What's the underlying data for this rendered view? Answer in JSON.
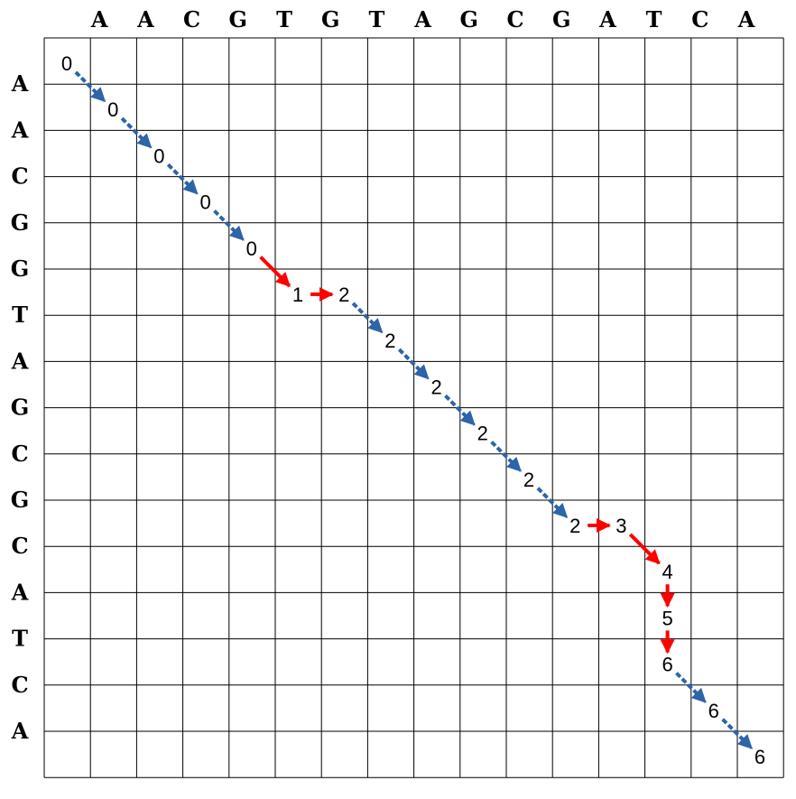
{
  "top_sequence": [
    "A",
    "A",
    "C",
    "G",
    "T",
    "G",
    "T",
    "A",
    "G",
    "C",
    "G",
    "A",
    "T",
    "C",
    "A"
  ],
  "left_sequence": [
    "A",
    "A",
    "C",
    "G",
    "G",
    "T",
    "A",
    "G",
    "C",
    "G",
    "C",
    "A",
    "T",
    "C",
    "A"
  ],
  "path": [
    {
      "row": 0,
      "col": 0,
      "score": "0"
    },
    {
      "row": 1,
      "col": 1,
      "score": "0"
    },
    {
      "row": 2,
      "col": 2,
      "score": "0"
    },
    {
      "row": 3,
      "col": 3,
      "score": "0"
    },
    {
      "row": 4,
      "col": 4,
      "score": "0"
    },
    {
      "row": 5,
      "col": 5,
      "score": "1"
    },
    {
      "row": 5,
      "col": 6,
      "score": "2"
    },
    {
      "row": 6,
      "col": 7,
      "score": "2"
    },
    {
      "row": 7,
      "col": 8,
      "score": "2"
    },
    {
      "row": 8,
      "col": 9,
      "score": "2"
    },
    {
      "row": 9,
      "col": 10,
      "score": "2"
    },
    {
      "row": 10,
      "col": 11,
      "score": "2"
    },
    {
      "row": 10,
      "col": 12,
      "score": "3"
    },
    {
      "row": 11,
      "col": 13,
      "score": "4"
    },
    {
      "row": 12,
      "col": 13,
      "score": "5"
    },
    {
      "row": 13,
      "col": 13,
      "score": "6"
    },
    {
      "row": 14,
      "col": 14,
      "score": "6"
    },
    {
      "row": 15,
      "col": 15,
      "score": "6"
    }
  ],
  "arrows": [
    {
      "from": 0,
      "to": 1,
      "kind": "match"
    },
    {
      "from": 1,
      "to": 2,
      "kind": "match"
    },
    {
      "from": 2,
      "to": 3,
      "kind": "match"
    },
    {
      "from": 3,
      "to": 4,
      "kind": "match"
    },
    {
      "from": 4,
      "to": 5,
      "kind": "edit"
    },
    {
      "from": 5,
      "to": 6,
      "kind": "edit"
    },
    {
      "from": 6,
      "to": 7,
      "kind": "match"
    },
    {
      "from": 7,
      "to": 8,
      "kind": "match"
    },
    {
      "from": 8,
      "to": 9,
      "kind": "match"
    },
    {
      "from": 9,
      "to": 10,
      "kind": "match"
    },
    {
      "from": 10,
      "to": 11,
      "kind": "match"
    },
    {
      "from": 11,
      "to": 12,
      "kind": "edit"
    },
    {
      "from": 12,
      "to": 13,
      "kind": "edit"
    },
    {
      "from": 13,
      "to": 14,
      "kind": "edit"
    },
    {
      "from": 14,
      "to": 15,
      "kind": "edit"
    },
    {
      "from": 15,
      "to": 16,
      "kind": "match"
    },
    {
      "from": 16,
      "to": 17,
      "kind": "match"
    }
  ],
  "colors": {
    "match": "#2e64a8",
    "edit": "#ff0000",
    "grid": "#000000"
  }
}
